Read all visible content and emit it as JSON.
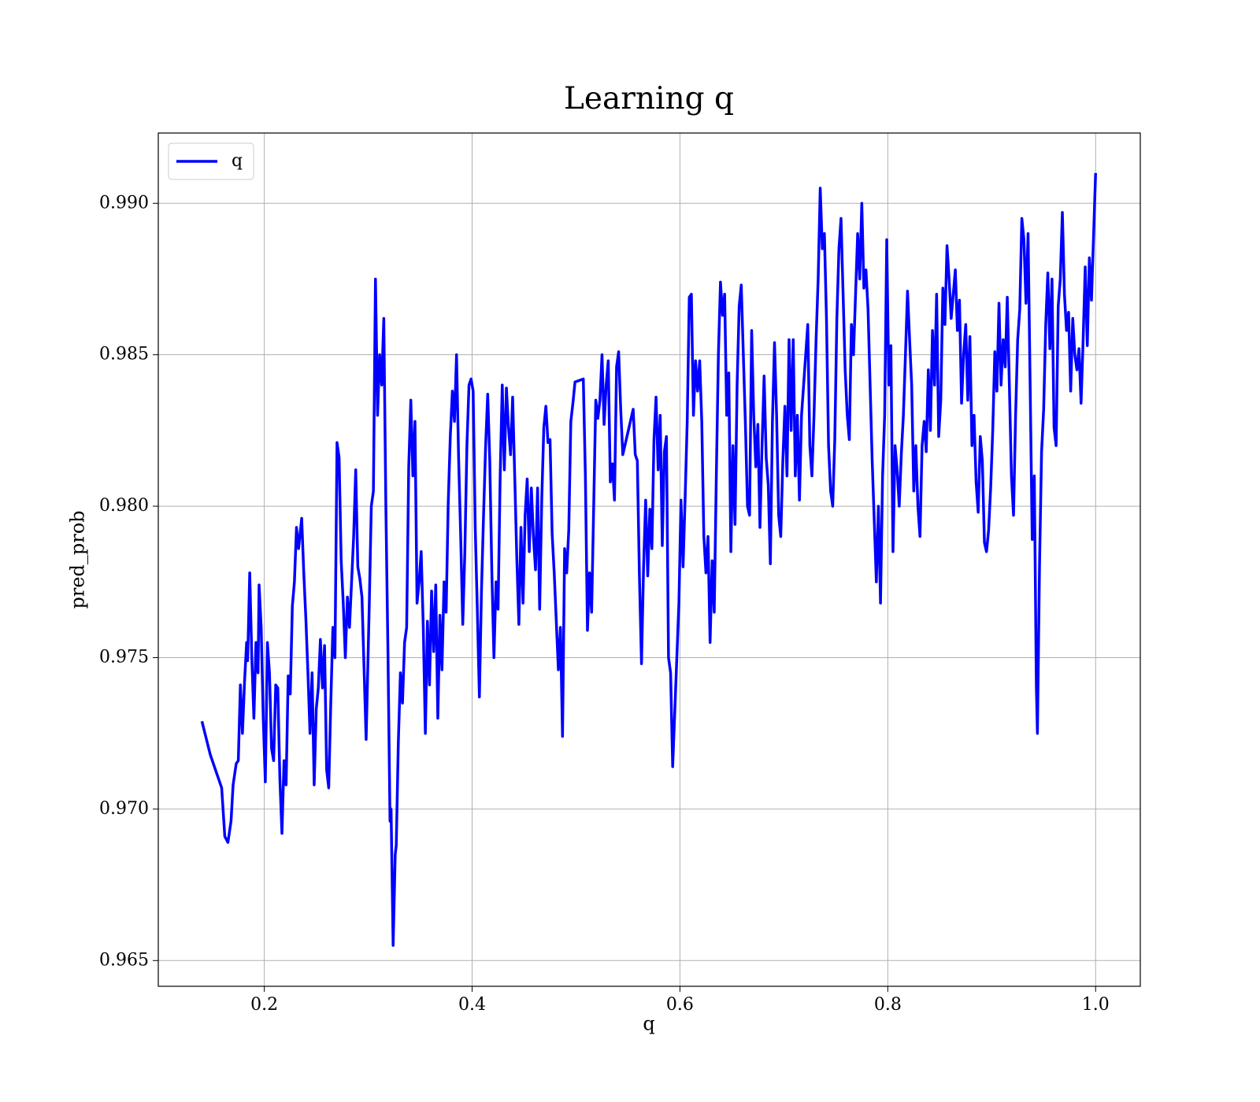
{
  "chart_data": {
    "type": "line",
    "title": "Learning q",
    "xlabel": "q",
    "ylabel": "pred_prob",
    "x": [
      0.14,
      0.148,
      0.155,
      0.159,
      0.162,
      0.165,
      0.168,
      0.17,
      0.173,
      0.175,
      0.177,
      0.179,
      0.181,
      0.183,
      0.184,
      0.186,
      0.188,
      0.19,
      0.192,
      0.194,
      0.195,
      0.197,
      0.199,
      0.201,
      0.203,
      0.205,
      0.207,
      0.209,
      0.211,
      0.213,
      0.215,
      0.217,
      0.219,
      0.221,
      0.223,
      0.225,
      0.227,
      0.229,
      0.231,
      0.233,
      0.236,
      0.238,
      0.24,
      0.242,
      0.244,
      0.246,
      0.248,
      0.25,
      0.252,
      0.254,
      0.256,
      0.258,
      0.26,
      0.262,
      0.264,
      0.266,
      0.268,
      0.27,
      0.272,
      0.274,
      0.276,
      0.278,
      0.28,
      0.282,
      0.284,
      0.286,
      0.288,
      0.29,
      0.292,
      0.294,
      0.298,
      0.301,
      0.303,
      0.305,
      0.307,
      0.309,
      0.311,
      0.313,
      0.315,
      0.317,
      0.319,
      0.321,
      0.322,
      0.324,
      0.326,
      0.327,
      0.329,
      0.331,
      0.333,
      0.335,
      0.337,
      0.339,
      0.341,
      0.343,
      0.345,
      0.347,
      0.349,
      0.351,
      0.353,
      0.355,
      0.357,
      0.359,
      0.361,
      0.363,
      0.365,
      0.367,
      0.369,
      0.371,
      0.373,
      0.375,
      0.377,
      0.379,
      0.381,
      0.383,
      0.385,
      0.387,
      0.389,
      0.391,
      0.393,
      0.395,
      0.397,
      0.399,
      0.401,
      0.403,
      0.405,
      0.407,
      0.409,
      0.411,
      0.413,
      0.415,
      0.417,
      0.419,
      0.421,
      0.423,
      0.425,
      0.427,
      0.429,
      0.431,
      0.433,
      0.435,
      0.437,
      0.439,
      0.441,
      0.443,
      0.445,
      0.447,
      0.449,
      0.451,
      0.453,
      0.455,
      0.457,
      0.459,
      0.461,
      0.463,
      0.465,
      0.467,
      0.469,
      0.471,
      0.473,
      0.475,
      0.477,
      0.479,
      0.481,
      0.483,
      0.485,
      0.487,
      0.489,
      0.491,
      0.493,
      0.495,
      0.497,
      0.499,
      0.507,
      0.509,
      0.511,
      0.513,
      0.515,
      0.517,
      0.519,
      0.521,
      0.523,
      0.525,
      0.527,
      0.529,
      0.531,
      0.533,
      0.535,
      0.537,
      0.539,
      0.541,
      0.543,
      0.545,
      0.555,
      0.557,
      0.559,
      0.561,
      0.563,
      0.565,
      0.567,
      0.569,
      0.571,
      0.573,
      0.575,
      0.577,
      0.579,
      0.581,
      0.583,
      0.585,
      0.587,
      0.589,
      0.591,
      0.593,
      0.599,
      0.601,
      0.603,
      0.605,
      0.607,
      0.609,
      0.611,
      0.613,
      0.615,
      0.617,
      0.619,
      0.621,
      0.623,
      0.625,
      0.627,
      0.629,
      0.631,
      0.633,
      0.635,
      0.637,
      0.639,
      0.641,
      0.643,
      0.645,
      0.647,
      0.649,
      0.651,
      0.653,
      0.655,
      0.657,
      0.659,
      0.661,
      0.663,
      0.665,
      0.667,
      0.669,
      0.671,
      0.673,
      0.675,
      0.677,
      0.679,
      0.681,
      0.683,
      0.685,
      0.687,
      0.689,
      0.691,
      0.693,
      0.695,
      0.697,
      0.699,
      0.701,
      0.703,
      0.705,
      0.707,
      0.709,
      0.711,
      0.713,
      0.715,
      0.717,
      0.723,
      0.725,
      0.727,
      0.729,
      0.731,
      0.733,
      0.735,
      0.737,
      0.739,
      0.741,
      0.743,
      0.745,
      0.747,
      0.749,
      0.751,
      0.753,
      0.755,
      0.757,
      0.759,
      0.761,
      0.763,
      0.765,
      0.767,
      0.769,
      0.771,
      0.773,
      0.775,
      0.777,
      0.779,
      0.781,
      0.783,
      0.785,
      0.787,
      0.789,
      0.791,
      0.793,
      0.795,
      0.797,
      0.799,
      0.801,
      0.803,
      0.805,
      0.807,
      0.809,
      0.811,
      0.813,
      0.815,
      0.817,
      0.819,
      0.821,
      0.823,
      0.825,
      0.827,
      0.829,
      0.831,
      0.833,
      0.835,
      0.837,
      0.839,
      0.841,
      0.843,
      0.845,
      0.847,
      0.849,
      0.851,
      0.853,
      0.855,
      0.857,
      0.859,
      0.861,
      0.863,
      0.865,
      0.867,
      0.869,
      0.871,
      0.873,
      0.875,
      0.877,
      0.879,
      0.881,
      0.883,
      0.885,
      0.887,
      0.889,
      0.891,
      0.893,
      0.895,
      0.897,
      0.899,
      0.901,
      0.903,
      0.905,
      0.907,
      0.909,
      0.911,
      0.913,
      0.915,
      0.917,
      0.919,
      0.921,
      0.923,
      0.925,
      0.927,
      0.929,
      0.931,
      0.933,
      0.935,
      0.937,
      0.939,
      0.941,
      0.943,
      0.944,
      0.946,
      0.948,
      0.95,
      0.952,
      0.954,
      0.956,
      0.958,
      0.96,
      0.962,
      0.964,
      0.966,
      0.968,
      0.97,
      0.972,
      0.974,
      0.976,
      0.978,
      0.98,
      0.982,
      0.984,
      0.986,
      0.988,
      0.99,
      0.992,
      0.994,
      0.996,
      1.0
    ],
    "series": [
      {
        "name": "q",
        "color": "#0000ff",
        "values": [
          0.9729,
          0.9718,
          0.9711,
          0.9707,
          0.9691,
          0.9689,
          0.9696,
          0.9708,
          0.9715,
          0.9716,
          0.9741,
          0.9725,
          0.9742,
          0.9755,
          0.9749,
          0.9778,
          0.975,
          0.973,
          0.9755,
          0.9745,
          0.9774,
          0.976,
          0.973,
          0.9709,
          0.9755,
          0.9745,
          0.972,
          0.9716,
          0.9741,
          0.974,
          0.971,
          0.9692,
          0.9716,
          0.9708,
          0.9744,
          0.9738,
          0.9767,
          0.9775,
          0.9793,
          0.9786,
          0.9796,
          0.9778,
          0.9763,
          0.9745,
          0.9725,
          0.9745,
          0.9708,
          0.9733,
          0.974,
          0.9756,
          0.974,
          0.9754,
          0.9713,
          0.9707,
          0.9735,
          0.976,
          0.975,
          0.9821,
          0.9816,
          0.9782,
          0.9768,
          0.975,
          0.977,
          0.976,
          0.9775,
          0.979,
          0.9812,
          0.978,
          0.9776,
          0.977,
          0.9723,
          0.9767,
          0.98,
          0.9805,
          0.9875,
          0.983,
          0.985,
          0.984,
          0.9862,
          0.98,
          0.9752,
          0.9696,
          0.97,
          0.9655,
          0.9685,
          0.9688,
          0.9722,
          0.9745,
          0.9735,
          0.9755,
          0.976,
          0.9813,
          0.9835,
          0.981,
          0.9828,
          0.9768,
          0.9775,
          0.9785,
          0.976,
          0.9725,
          0.9762,
          0.9741,
          0.9772,
          0.9752,
          0.9774,
          0.973,
          0.9764,
          0.9746,
          0.9775,
          0.9765,
          0.9801,
          0.9823,
          0.9838,
          0.9828,
          0.985,
          0.9816,
          0.979,
          0.9761,
          0.9785,
          0.982,
          0.984,
          0.9842,
          0.9838,
          0.9793,
          0.9766,
          0.9737,
          0.9772,
          0.9797,
          0.982,
          0.9837,
          0.9815,
          0.9778,
          0.975,
          0.9775,
          0.9766,
          0.981,
          0.984,
          0.9812,
          0.9839,
          0.9826,
          0.9817,
          0.9836,
          0.981,
          0.9783,
          0.9761,
          0.9793,
          0.9768,
          0.9797,
          0.9809,
          0.9785,
          0.9806,
          0.979,
          0.9779,
          0.9806,
          0.9766,
          0.9802,
          0.9826,
          0.9833,
          0.9821,
          0.9822,
          0.9791,
          0.9778,
          0.9762,
          0.9746,
          0.976,
          0.9724,
          0.9786,
          0.9778,
          0.9792,
          0.9828,
          0.9834,
          0.9841,
          0.9842,
          0.981,
          0.9759,
          0.9778,
          0.9765,
          0.98,
          0.9835,
          0.9829,
          0.9835,
          0.985,
          0.9827,
          0.984,
          0.9848,
          0.9808,
          0.9814,
          0.9802,
          0.9846,
          0.9851,
          0.9832,
          0.9817,
          0.9832,
          0.9817,
          0.9815,
          0.9777,
          0.9748,
          0.978,
          0.9802,
          0.9777,
          0.9799,
          0.9786,
          0.9822,
          0.9836,
          0.9812,
          0.983,
          0.9787,
          0.9818,
          0.9823,
          0.975,
          0.9745,
          0.9714,
          0.9768,
          0.9802,
          0.978,
          0.9803,
          0.9828,
          0.9869,
          0.987,
          0.983,
          0.9848,
          0.9838,
          0.9848,
          0.9828,
          0.979,
          0.9778,
          0.979,
          0.9755,
          0.9782,
          0.9765,
          0.981,
          0.985,
          0.9874,
          0.9863,
          0.987,
          0.983,
          0.9844,
          0.9785,
          0.982,
          0.9794,
          0.984,
          0.9866,
          0.9873,
          0.985,
          0.9827,
          0.98,
          0.9797,
          0.9858,
          0.983,
          0.9813,
          0.9827,
          0.9793,
          0.982,
          0.9843,
          0.9816,
          0.9807,
          0.9781,
          0.9828,
          0.9854,
          0.983,
          0.9797,
          0.979,
          0.9815,
          0.9833,
          0.981,
          0.9855,
          0.9825,
          0.9855,
          0.981,
          0.983,
          0.9802,
          0.983,
          0.986,
          0.982,
          0.981,
          0.983,
          0.9855,
          0.9875,
          0.9905,
          0.9885,
          0.989,
          0.9862,
          0.982,
          0.9805,
          0.98,
          0.9822,
          0.9862,
          0.9885,
          0.9895,
          0.987,
          0.9845,
          0.983,
          0.9822,
          0.986,
          0.985,
          0.987,
          0.989,
          0.9875,
          0.99,
          0.9872,
          0.9878,
          0.9865,
          0.984,
          0.9815,
          0.9795,
          0.9775,
          0.98,
          0.9768,
          0.981,
          0.983,
          0.9888,
          0.984,
          0.9853,
          0.9785,
          0.982,
          0.9812,
          0.98,
          0.9817,
          0.983,
          0.985,
          0.9871,
          0.9855,
          0.984,
          0.9805,
          0.982,
          0.98,
          0.979,
          0.982,
          0.9828,
          0.9818,
          0.9845,
          0.9825,
          0.9858,
          0.984,
          0.987,
          0.9823,
          0.9835,
          0.9872,
          0.986,
          0.9886,
          0.9875,
          0.9862,
          0.987,
          0.9878,
          0.9858,
          0.9868,
          0.9834,
          0.985,
          0.986,
          0.9835,
          0.9856,
          0.982,
          0.983,
          0.9808,
          0.9798,
          0.9823,
          0.9815,
          0.9788,
          0.9785,
          0.9792,
          0.9806,
          0.9825,
          0.9851,
          0.9838,
          0.9867,
          0.984,
          0.9855,
          0.9846,
          0.9869,
          0.984,
          0.981,
          0.9797,
          0.983,
          0.9855,
          0.9865,
          0.9895,
          0.9888,
          0.9867,
          0.989,
          0.984,
          0.9789,
          0.981,
          0.974,
          0.9725,
          0.978,
          0.9818,
          0.9832,
          0.986,
          0.9877,
          0.9852,
          0.9875,
          0.9826,
          0.982,
          0.9866,
          0.9875,
          0.9897,
          0.987,
          0.9858,
          0.9864,
          0.9838,
          0.9862,
          0.985,
          0.9845,
          0.9852,
          0.9834,
          0.9855,
          0.9879,
          0.9853,
          0.9882,
          0.9868,
          0.991
        ]
      }
    ],
    "xlim": [
      0.098,
      1.043
    ],
    "ylim": [
      0.96415,
      0.99232
    ],
    "xticks": [
      0.2,
      0.4,
      0.6,
      0.8,
      {
        "value": 1,
        "label": "1.0"
      }
    ],
    "yticks": [
      0.965,
      {
        "value": 0.97,
        "label": "0.970"
      },
      0.975,
      {
        "value": 0.98,
        "label": "0.980"
      },
      0.985,
      {
        "value": 0.99,
        "label": "0.990"
      }
    ],
    "grid": true,
    "legend": "upper left"
  }
}
